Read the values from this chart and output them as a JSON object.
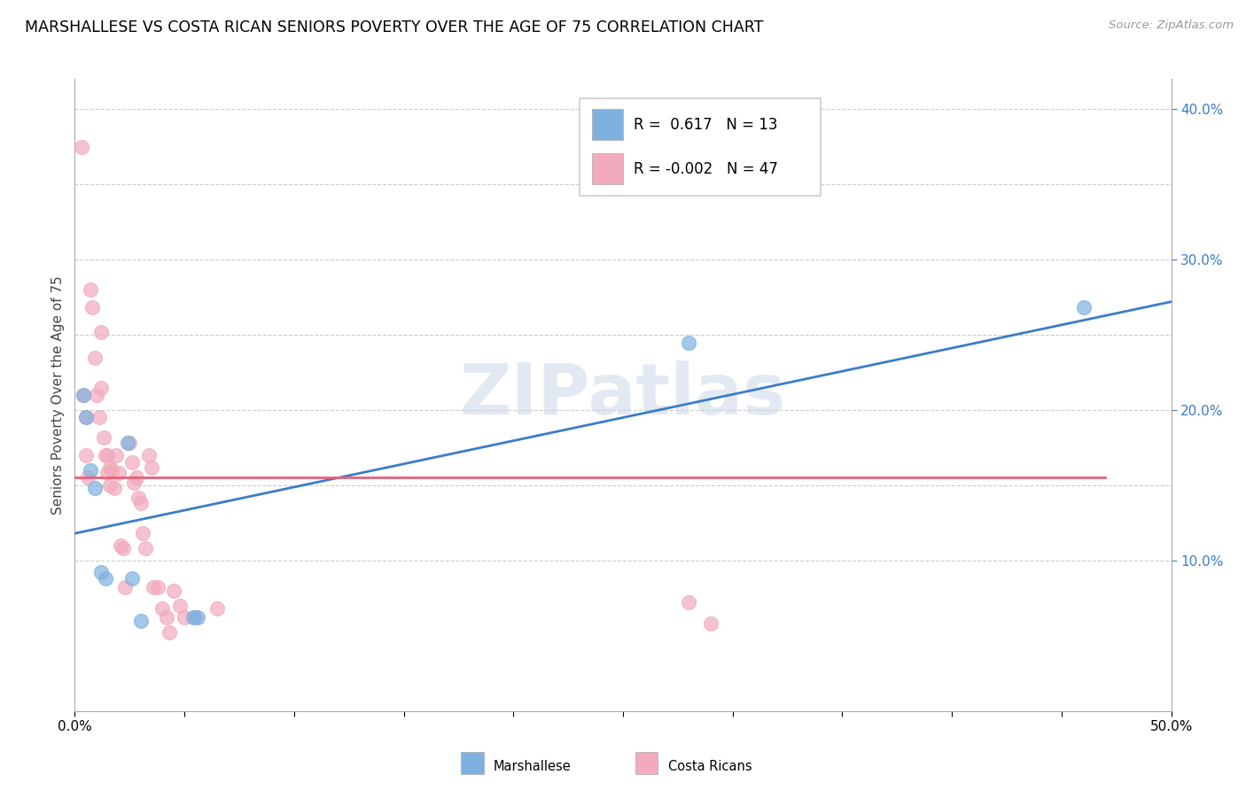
{
  "title": "MARSHALLESE VS COSTA RICAN SENIORS POVERTY OVER THE AGE OF 75 CORRELATION CHART",
  "source": "Source: ZipAtlas.com",
  "ylabel_label": "Seniors Poverty Over the Age of 75",
  "xlim": [
    0.0,
    0.5
  ],
  "ylim": [
    0.0,
    0.42
  ],
  "xticks": [
    0.0,
    0.05,
    0.1,
    0.15,
    0.2,
    0.25,
    0.3,
    0.35,
    0.4,
    0.45,
    0.5
  ],
  "xtick_labels": [
    "0.0%",
    "",
    "",
    "",
    "",
    "",
    "",
    "",
    "",
    "",
    "50.0%"
  ],
  "yticks_right": [
    0.1,
    0.2,
    0.3,
    0.4
  ],
  "ytick_right_labels": [
    "10.0%",
    "20.0%",
    "30.0%",
    "40.0%"
  ],
  "watermark": "ZIPatlas",
  "legend_blue_r": "0.617",
  "legend_blue_n": "13",
  "legend_pink_r": "-0.002",
  "legend_pink_n": "47",
  "blue_scatter_x": [
    0.004,
    0.005,
    0.007,
    0.009,
    0.012,
    0.014,
    0.024,
    0.026,
    0.03,
    0.054,
    0.056,
    0.28,
    0.46
  ],
  "blue_scatter_y": [
    0.21,
    0.195,
    0.16,
    0.148,
    0.092,
    0.088,
    0.178,
    0.088,
    0.06,
    0.062,
    0.062,
    0.245,
    0.268
  ],
  "pink_scatter_x": [
    0.003,
    0.004,
    0.005,
    0.005,
    0.006,
    0.007,
    0.008,
    0.009,
    0.01,
    0.011,
    0.012,
    0.012,
    0.013,
    0.014,
    0.015,
    0.015,
    0.016,
    0.016,
    0.017,
    0.018,
    0.019,
    0.02,
    0.021,
    0.022,
    0.023,
    0.025,
    0.026,
    0.027,
    0.028,
    0.029,
    0.03,
    0.031,
    0.032,
    0.034,
    0.035,
    0.036,
    0.038,
    0.04,
    0.042,
    0.043,
    0.045,
    0.048,
    0.05,
    0.055,
    0.065,
    0.28,
    0.29
  ],
  "pink_scatter_y": [
    0.375,
    0.21,
    0.195,
    0.17,
    0.155,
    0.28,
    0.268,
    0.235,
    0.21,
    0.195,
    0.252,
    0.215,
    0.182,
    0.17,
    0.17,
    0.158,
    0.15,
    0.162,
    0.16,
    0.148,
    0.17,
    0.158,
    0.11,
    0.108,
    0.082,
    0.178,
    0.165,
    0.152,
    0.155,
    0.142,
    0.138,
    0.118,
    0.108,
    0.17,
    0.162,
    0.082,
    0.082,
    0.068,
    0.062,
    0.052,
    0.08,
    0.07,
    0.062,
    0.062,
    0.068,
    0.072,
    0.058
  ],
  "blue_line_x": [
    0.0,
    0.5
  ],
  "blue_line_y": [
    0.118,
    0.272
  ],
  "pink_line_x": [
    0.0,
    0.47
  ],
  "pink_line_y": [
    0.155,
    0.155
  ],
  "hgrid_y": [
    0.1,
    0.15,
    0.2,
    0.25,
    0.3,
    0.35,
    0.4
  ],
  "scatter_size": 130,
  "blue_color": "#7EB1E0",
  "pink_color": "#F2AABC",
  "blue_line_color": "#3A7DC9",
  "pink_line_color": "#E8607A",
  "title_fontsize": 12.5,
  "axis_label_fontsize": 11,
  "tick_fontsize": 11,
  "legend_fontsize": 12,
  "source_fontsize": 9.5
}
